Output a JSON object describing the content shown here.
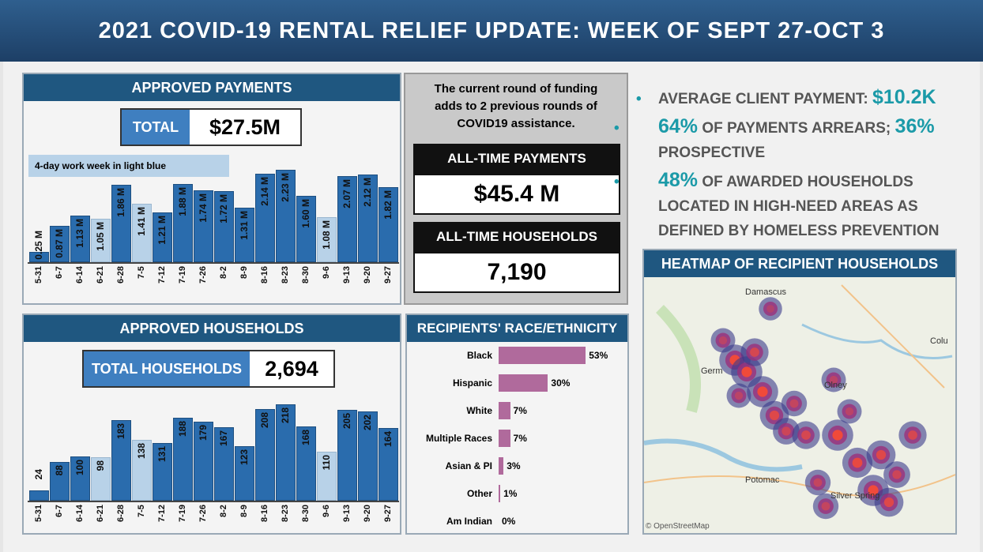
{
  "title": "2021 COVID-19 RENTAL RELIEF UPDATE: WEEK OF SEPT 27-OCT 3",
  "payments": {
    "header": "APPROVED PAYMENTS",
    "total_label": "TOTAL",
    "total_value": "$27.5M",
    "note": "4-day work week in light blue"
  },
  "households": {
    "header": "APPROVED HOUSEHOLDS",
    "total_label": "TOTAL HOUSEHOLDS",
    "total_value": "2,694"
  },
  "middle": {
    "note": "The current round of funding adds to 2 previous rounds of COVID19 assistance.",
    "all_time_payments_label": "ALL-TIME PAYMENTS",
    "all_time_payments_value": "$45.4 M",
    "all_time_households_label": "ALL-TIME HOUSEHOLDS",
    "all_time_households_value": "7,190"
  },
  "bullets": [
    {
      "pre": "AVERAGE CLIENT PAYMENT: ",
      "hl": "$10.2K",
      "post": ""
    },
    {
      "pre": "",
      "hl": "64%",
      "post": " OF PAYMENTS ARREARS; ",
      "hl2": "36%",
      "post2": "PROSPECTIVE"
    },
    {
      "pre": "",
      "hl": "48%",
      "post": " OF AWARDED HOUSEHOLDS LOCATED IN HIGH-NEED AREAS AS DEFINED BY HOMELESS PREVENTION INDEX"
    }
  ],
  "heatmap": {
    "header": "HEATMAP OF RECIPIENT HOUSEHOLDS",
    "places": [
      "Damascus",
      "Germ",
      "Olney",
      "Colu",
      "Potomac",
      "Silver Spring"
    ],
    "credit": "© OpenStreetMap"
  },
  "colors": {
    "bar": "#2a6cad",
    "bar_light": "#b8d2e8",
    "header": "#1f5780",
    "race": "#b06a9c",
    "accent": "#1b9aa8"
  },
  "chart_data": [
    {
      "type": "bar",
      "title": "APPROVED PAYMENTS",
      "categories": [
        "5-31",
        "6-7",
        "6-14",
        "6-21",
        "6-28",
        "7-5",
        "7-12",
        "7-19",
        "7-26",
        "8-2",
        "8-9",
        "8-16",
        "8-23",
        "8-30",
        "9-6",
        "9-13",
        "9-20",
        "9-27"
      ],
      "values": [
        0.25,
        0.87,
        1.13,
        1.05,
        1.86,
        1.41,
        1.21,
        1.88,
        1.74,
        1.72,
        1.31,
        2.14,
        2.23,
        1.6,
        1.08,
        2.07,
        2.12,
        1.82
      ],
      "labels": [
        "0.25 M",
        "0.87 M",
        "1.13 M",
        "1.05 M",
        "1.86 M",
        "1.41 M",
        "1.21 M",
        "1.88 M",
        "1.74 M",
        "1.72 M",
        "1.31 M",
        "2.14 M",
        "2.23 M",
        "1.60 M",
        "1.08 M",
        "2.07 M",
        "2.12 M",
        "1.82 M"
      ],
      "light_weeks": [
        "6-21",
        "7-5",
        "9-6"
      ],
      "unit": "M"
    },
    {
      "type": "bar",
      "title": "APPROVED HOUSEHOLDS",
      "categories": [
        "5-31",
        "6-7",
        "6-14",
        "6-21",
        "6-28",
        "7-5",
        "7-12",
        "7-19",
        "7-26",
        "8-2",
        "8-9",
        "8-16",
        "8-23",
        "8-30",
        "9-6",
        "9-13",
        "9-20",
        "9-27"
      ],
      "values": [
        24,
        88,
        100,
        98,
        183,
        138,
        131,
        188,
        179,
        167,
        123,
        208,
        218,
        168,
        110,
        205,
        202,
        164
      ],
      "light_weeks": [
        "6-21",
        "7-5",
        "9-6"
      ]
    },
    {
      "type": "bar",
      "orientation": "horizontal",
      "title": "RECIPIENTS' RACE/ETHNICITY",
      "categories": [
        "Black",
        "Hispanic",
        "White",
        "Multiple Races",
        "Asian & PI",
        "Other",
        "Am Indian"
      ],
      "values": [
        53,
        30,
        7,
        7,
        3,
        1,
        0
      ],
      "labels": [
        "53%",
        "30%",
        "7%",
        "7%",
        "3%",
        "1%",
        "0%"
      ]
    }
  ]
}
